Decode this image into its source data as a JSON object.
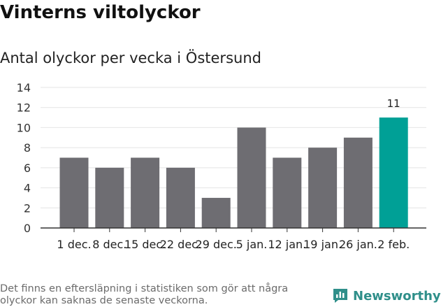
{
  "header": {
    "title": "Vinterns viltolyckor",
    "subtitle": "Antal olyckor per vecka i Östersund"
  },
  "chart_data": {
    "type": "bar",
    "categories": [
      "1 dec.",
      "8 dec.",
      "15 dec.",
      "22 dec.",
      "29 dec.",
      "5 jan.",
      "12 jan.",
      "19 jan.",
      "26 jan.",
      "2 feb."
    ],
    "values": [
      7,
      6,
      7,
      6,
      3,
      10,
      7,
      8,
      9,
      11
    ],
    "ylim": [
      0,
      14
    ],
    "yticks": [
      0,
      2,
      4,
      6,
      8,
      10,
      12,
      14
    ],
    "grid": true,
    "colors": {
      "bar": "#6e6d72",
      "highlight": "#00a096",
      "grid": "#e4e4e4",
      "axis": "#333333"
    },
    "highlight_index": 9,
    "data_labels": [
      {
        "index": 9,
        "text": "11"
      }
    ]
  },
  "footer": {
    "note": "Det finns en eftersläpning i statistiken som gör att några olyckor kan saknas de senaste veckorna.",
    "brand": "Newsworthy",
    "brand_icon": "bar-chart-logo-icon"
  }
}
